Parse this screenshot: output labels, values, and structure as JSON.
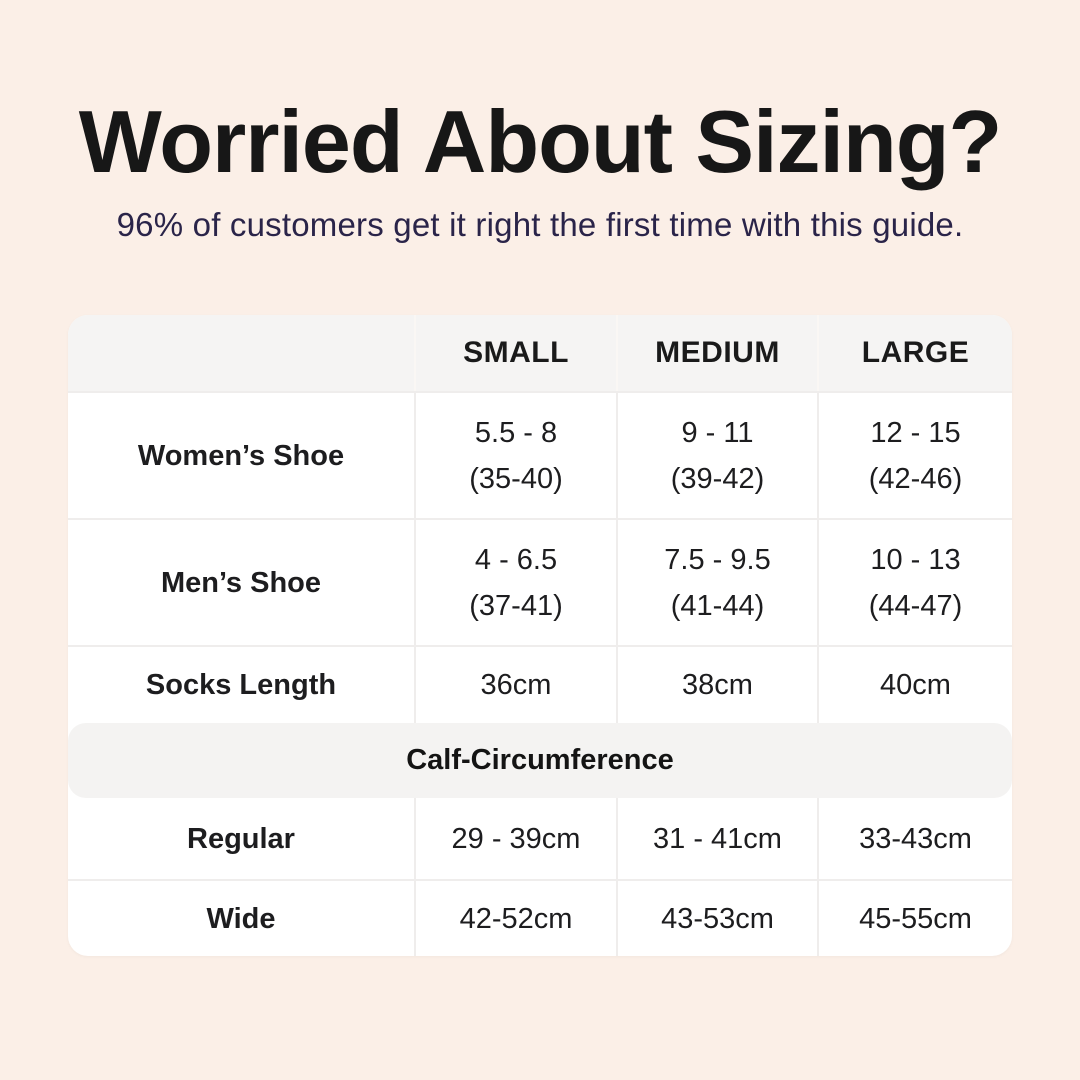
{
  "colors": {
    "page_background": "#FBEFE7",
    "title_text": "#171717",
    "subtitle_text": "#2A2449",
    "table_background": "#FFFFFF",
    "header_row_background": "#F5F4F3",
    "section_band_background": "#F4F3F2",
    "divider": "#EFEDEC",
    "body_text": "#1D1D1F"
  },
  "header": {
    "title": "Worried About Sizing?",
    "subtitle": "96% of customers get it right the first time with this guide."
  },
  "table": {
    "columns": {
      "small": "SMALL",
      "medium": "MEDIUM",
      "large": "LARGE"
    },
    "womens": {
      "label": "Women’s Shoe",
      "small_1": "5.5 - 8",
      "small_2": "(35-40)",
      "medium_1": "9 - 11",
      "medium_2": "(39-42)",
      "large_1": "12 - 15",
      "large_2": "(42-46)"
    },
    "mens": {
      "label": "Men’s Shoe",
      "small_1": "4 - 6.5",
      "small_2": "(37-41)",
      "medium_1": "7.5 - 9.5",
      "medium_2": "(41-44)",
      "large_1": "10 - 13",
      "large_2": "(44-47)"
    },
    "socks": {
      "label": "Socks Length",
      "small": "36cm",
      "medium": "38cm",
      "large": "40cm"
    },
    "calf_section": {
      "title": "Calf-Circumference"
    },
    "regular": {
      "label": "Regular",
      "small": "29 - 39cm",
      "medium": "31 - 41cm",
      "large": "33-43cm"
    },
    "wide": {
      "label": "Wide",
      "small": "42-52cm",
      "medium": "43-53cm",
      "large": "45-55cm"
    }
  },
  "chart_data": {
    "type": "table",
    "title": "Worried About Sizing?",
    "subtitle": "96% of customers get it right the first time with this guide.",
    "columns": [
      "",
      "SMALL",
      "MEDIUM",
      "LARGE"
    ],
    "rows": [
      [
        "Women’s Shoe",
        "5.5 - 8 (35-40)",
        "9 - 11 (39-42)",
        "12 - 15 (42-46)"
      ],
      [
        "Men’s Shoe",
        "4 - 6.5 (37-41)",
        "7.5 - 9.5 (41-44)",
        "10 - 13 (44-47)"
      ],
      [
        "Socks Length",
        "36cm",
        "38cm",
        "40cm"
      ],
      [
        "Calf-Circumference",
        "",
        "",
        ""
      ],
      [
        "Regular",
        "29 - 39cm",
        "31 - 41cm",
        "33-43cm"
      ],
      [
        "Wide",
        "42-52cm",
        "43-53cm",
        "45-55cm"
      ]
    ]
  }
}
